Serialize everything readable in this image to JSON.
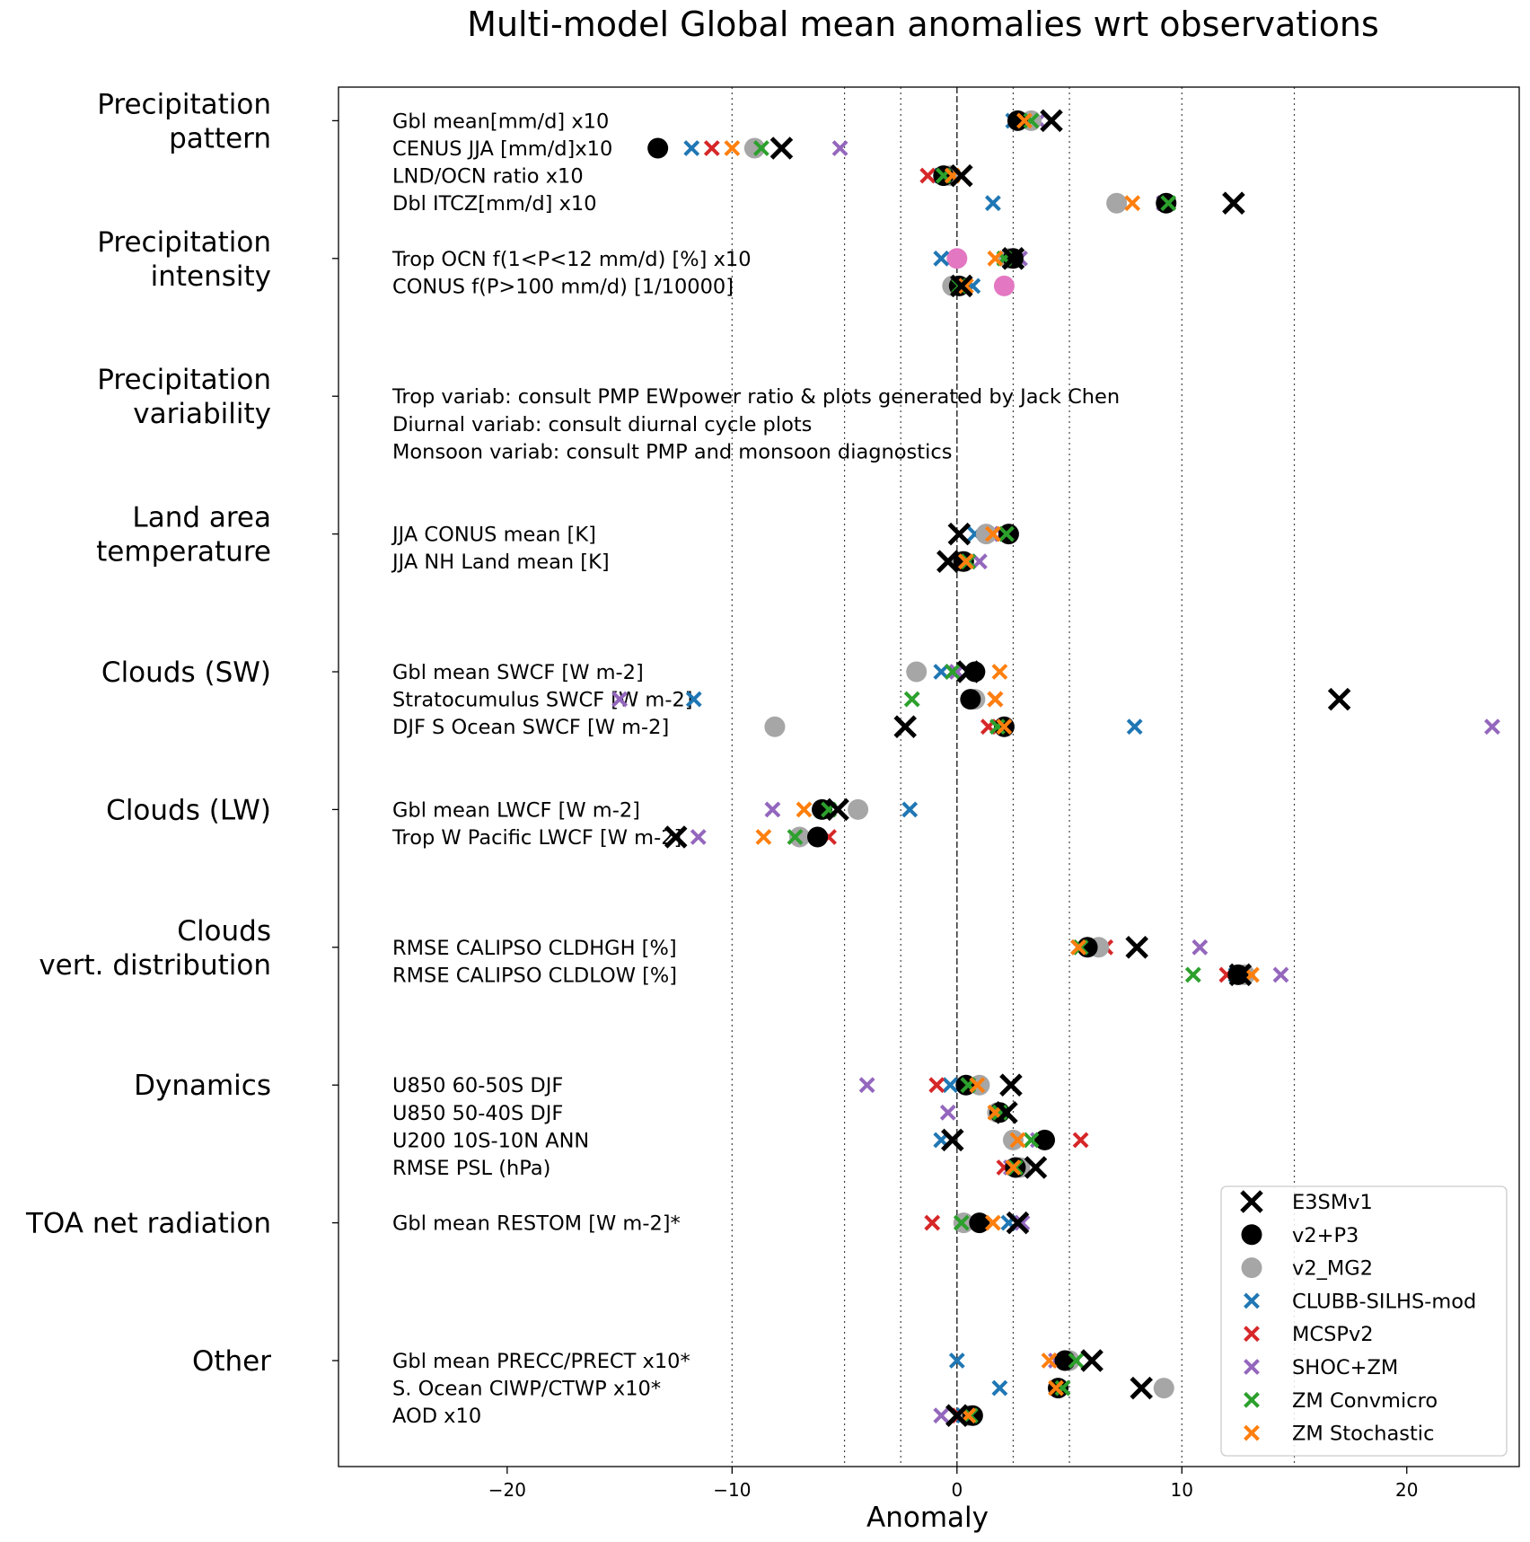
{
  "chart_data": {
    "type": "scatter",
    "title": "Multi-model Global mean anomalies wrt observations",
    "xlabel": "Anomaly",
    "ylabel": "",
    "xlim": [
      -27.5,
      25
    ],
    "xticks": [
      -20,
      -10,
      0,
      10,
      20
    ],
    "xtick_labels": [
      "−20",
      "−10",
      "0",
      "10",
      "20"
    ],
    "vlines_dotted": [
      -10,
      -5,
      -2.5,
      2.5,
      5,
      10,
      15
    ],
    "vline_dashed": 0,
    "legend_position": "lower-right",
    "series": [
      {
        "name": "E3SMv1",
        "marker": "x-large",
        "color": "#000000"
      },
      {
        "name": "v2+P3",
        "marker": "circle",
        "color": "#000000"
      },
      {
        "name": "v2_MG2",
        "marker": "circle",
        "color": "#a6a6a6"
      },
      {
        "name": "CLUBB-SILHS-mod",
        "marker": "x",
        "color": "#1f77b4"
      },
      {
        "name": "MCSPv2",
        "marker": "x",
        "color": "#d62728"
      },
      {
        "name": "SHOC+ZM",
        "marker": "x",
        "color": "#9467bd"
      },
      {
        "name": "ZM Convmicro",
        "marker": "x",
        "color": "#2ca02c"
      },
      {
        "name": "ZM Stochastic",
        "marker": "x",
        "color": "#ff7f0e"
      }
    ],
    "extra_marker_color": "#e377c2",
    "groups": [
      {
        "label": [
          "Precipitation",
          "pattern"
        ],
        "metrics": [
          {
            "label": "Gbl mean[mm/d] x10",
            "E3SMv1": 4.2,
            "v2+P3": 2.7,
            "v2_MG2": 3.3,
            "CLUBB-SILHS-mod": 2.5,
            "MCSPv2": 3.0,
            "SHOC+ZM": 3.6,
            "ZM Convmicro": 3.3,
            "ZM Stochastic": 3.0
          },
          {
            "label": "CENUS JJA [mm/d]x10",
            "E3SMv1": -7.8,
            "v2+P3": -13.3,
            "v2_MG2": -9.0,
            "CLUBB-SILHS-mod": -11.8,
            "MCSPv2": -10.9,
            "SHOC+ZM": -5.2,
            "ZM Convmicro": -8.7,
            "ZM Stochastic": -10.0
          },
          {
            "label": "LND/OCN ratio x10",
            "E3SMv1": 0.2,
            "v2+P3": -0.6,
            "v2_MG2": -0.3,
            "CLUBB-SILHS-mod": -0.7,
            "MCSPv2": -1.3,
            "SHOC+ZM": -0.5,
            "ZM Convmicro": -0.6,
            "ZM Stochastic": -0.2
          },
          {
            "label": "Dbl ITCZ[mm/d] x10",
            "E3SMv1": 12.3,
            "v2+P3": 9.3,
            "v2_MG2": 7.1,
            "CLUBB-SILHS-mod": 1.6,
            "MCSPv2": 9.3,
            "SHOC+ZM": 9.2,
            "ZM Convmicro": 9.4,
            "ZM Stochastic": 7.8
          }
        ]
      },
      {
        "label": [
          "Precipitation",
          "intensity"
        ],
        "metrics": [
          {
            "label": "Trop OCN f(1<P<12 mm/d) [%] x10",
            "E3SMv1": 2.5,
            "v2+P3": 2.5,
            "v2_MG2": 2.3,
            "CLUBB-SILHS-mod": -0.7,
            "MCSPv2": 2.5,
            "SHOC+ZM": 2.8,
            "ZM Convmicro": 2.1,
            "ZM Stochastic": 1.7,
            "extra": 0.0
          },
          {
            "label": "CONUS f(P>100 mm/d) [1/10000]",
            "E3SMv1": 0.2,
            "v2+P3": 0.1,
            "v2_MG2": -0.2,
            "CLUBB-SILHS-mod": 0.7,
            "MCSPv2": 0.1,
            "SHOC+ZM": 0.2,
            "ZM Convmicro": 0.1,
            "ZM Stochastic": 0.4,
            "extra": 2.1
          }
        ]
      },
      {
        "label": [
          "Precipitation",
          "variability"
        ],
        "metrics": [],
        "notes": [
          "Trop variab: consult PMP EWpower ratio & plots generated by Jack Chen",
          "Diurnal variab: consult diurnal cycle plots",
          "Monsoon variab: consult PMP and monsoon diagnostics"
        ]
      },
      {
        "label": [
          "Land area",
          "temperature"
        ],
        "metrics": [
          {
            "label": "JJA CONUS mean [K]",
            "E3SMv1": 0.1,
            "v2+P3": 2.3,
            "v2_MG2": 1.3,
            "CLUBB-SILHS-mod": 0.8,
            "MCSPv2": 2.0,
            "SHOC+ZM": 2.0,
            "ZM Convmicro": 2.2,
            "ZM Stochastic": 1.6
          },
          {
            "label": "JJA NH Land mean [K]",
            "E3SMv1": -0.4,
            "v2+P3": 0.3,
            "v2_MG2": 0.2,
            "CLUBB-SILHS-mod": 0.1,
            "MCSPv2": 0.2,
            "SHOC+ZM": 1.0,
            "ZM Convmicro": 0.5,
            "ZM Stochastic": 0.4
          }
        ]
      },
      {
        "label": [
          "Clouds (SW)"
        ],
        "metrics": [
          {
            "label": "Gbl mean SWCF [W m-2]",
            "E3SMv1": 0.5,
            "v2+P3": 0.8,
            "v2_MG2": -1.8,
            "CLUBB-SILHS-mod": -0.7,
            "MCSPv2": 0.8,
            "SHOC+ZM": 0.0,
            "ZM Convmicro": -0.2,
            "ZM Stochastic": 1.9
          },
          {
            "label": "Stratocumulus SWCF [W m-2]",
            "E3SMv1": 17.0,
            "v2+P3": 0.6,
            "v2_MG2": 0.8,
            "CLUBB-SILHS-mod": -11.7,
            "MCSPv2": 1.7,
            "SHOC+ZM": -15.0,
            "ZM Convmicro": -2.0,
            "ZM Stochastic": 1.7
          },
          {
            "label": "DJF S Ocean SWCF [W m-2]",
            "E3SMv1": -2.3,
            "v2+P3": 2.1,
            "v2_MG2": -8.1,
            "CLUBB-SILHS-mod": 7.9,
            "MCSPv2": 1.4,
            "SHOC+ZM": 23.8,
            "ZM Convmicro": 1.8,
            "ZM Stochastic": 2.1
          }
        ]
      },
      {
        "label": [
          "Clouds (LW)"
        ],
        "metrics": [
          {
            "label": "Gbl mean LWCF [W m-2]",
            "E3SMv1": -5.3,
            "v2+P3": -6.0,
            "v2_MG2": -4.4,
            "CLUBB-SILHS-mod": -2.1,
            "MCSPv2": -5.9,
            "SHOC+ZM": -8.2,
            "ZM Convmicro": -5.7,
            "ZM Stochastic": -6.8
          },
          {
            "label": "Trop W Pacific LWCF [W m-2]",
            "E3SMv1": -12.5,
            "v2+P3": -6.2,
            "v2_MG2": -7.0,
            "CLUBB-SILHS-mod": -6.2,
            "MCSPv2": -5.7,
            "SHOC+ZM": -11.5,
            "ZM Convmicro": -7.2,
            "ZM Stochastic": -8.6
          }
        ]
      },
      {
        "label": [
          "Clouds",
          "vert. distribution"
        ],
        "metrics": [
          {
            "label": "RMSE CALIPSO CLDHGH [%]",
            "E3SMv1": 8.0,
            "v2+P3": 5.8,
            "v2_MG2": 6.3,
            "CLUBB-SILHS-mod": 5.4,
            "MCSPv2": 6.6,
            "SHOC+ZM": 10.8,
            "ZM Convmicro": 5.5,
            "ZM Stochastic": 5.4
          },
          {
            "label": "RMSE CALIPSO CLDLOW [%]",
            "E3SMv1": 12.6,
            "v2+P3": 12.5,
            "v2_MG2": 12.8,
            "CLUBB-SILHS-mod": 12.4,
            "MCSPv2": 12.0,
            "SHOC+ZM": 14.4,
            "ZM Convmicro": 10.5,
            "ZM Stochastic": 13.1
          }
        ]
      },
      {
        "label": [
          "Dynamics"
        ],
        "metrics": [
          {
            "label": "U850 60-50S DJF",
            "E3SMv1": 2.4,
            "v2+P3": 0.4,
            "v2_MG2": 1.0,
            "CLUBB-SILHS-mod": -0.3,
            "MCSPv2": -0.9,
            "SHOC+ZM": -4.0,
            "ZM Convmicro": 0.5,
            "ZM Stochastic": 0.9
          },
          {
            "label": "U850 50-40S DJF",
            "E3SMv1": 2.2,
            "v2+P3": 1.9,
            "v2_MG2": 1.8,
            "CLUBB-SILHS-mod": 2.2,
            "MCSPv2": 1.8,
            "SHOC+ZM": -0.4,
            "ZM Convmicro": 1.9,
            "ZM Stochastic": 1.7
          },
          {
            "label": "U200 10S-10N ANN",
            "E3SMv1": -0.2,
            "v2+P3": 3.9,
            "v2_MG2": 2.5,
            "CLUBB-SILHS-mod": -0.7,
            "MCSPv2": 5.5,
            "SHOC+ZM": 3.6,
            "ZM Convmicro": 3.3,
            "ZM Stochastic": 2.7
          },
          {
            "label": "RMSE PSL (hPa)",
            "E3SMv1": 3.5,
            "v2+P3": 2.6,
            "v2_MG2": 2.8,
            "CLUBB-SILHS-mod": 2.5,
            "MCSPv2": 2.1,
            "SHOC+ZM": 2.4,
            "ZM Convmicro": 2.6,
            "ZM Stochastic": 2.5
          }
        ]
      },
      {
        "label": [
          "TOA net radiation"
        ],
        "metrics": [
          {
            "label": "Gbl mean RESTOM [W m-2]*",
            "E3SMv1": 2.7,
            "v2+P3": 1.0,
            "v2_MG2": 0.3,
            "CLUBB-SILHS-mod": 2.3,
            "MCSPv2": -1.1,
            "SHOC+ZM": 2.9,
            "ZM Convmicro": 0.2,
            "ZM Stochastic": 1.6
          }
        ]
      },
      {
        "label": [
          "Other"
        ],
        "metrics": [
          {
            "label": "Gbl mean PRECC/PRECT x10*",
            "E3SMv1": 6.0,
            "v2+P3": 4.8,
            "v2_MG2": 5.0,
            "CLUBB-SILHS-mod": 0.0,
            "MCSPv2": 4.6,
            "SHOC+ZM": 4.4,
            "ZM Convmicro": 5.3,
            "ZM Stochastic": 4.1
          },
          {
            "label": "S. Ocean CIWP/CTWP x10*",
            "E3SMv1": 8.2,
            "v2+P3": 4.5,
            "v2_MG2": 9.2,
            "CLUBB-SILHS-mod": 1.9,
            "MCSPv2": 4.5,
            "SHOC+ZM": 4.5,
            "ZM Convmicro": 4.7,
            "ZM Stochastic": 4.4
          },
          {
            "label": "AOD x10",
            "E3SMv1": 0.0,
            "v2+P3": 0.7,
            "v2_MG2": 0.5,
            "CLUBB-SILHS-mod": 0.3,
            "MCSPv2": 0.1,
            "SHOC+ZM": -0.7,
            "ZM Convmicro": 0.6,
            "ZM Stochastic": 0.5
          }
        ]
      }
    ]
  }
}
